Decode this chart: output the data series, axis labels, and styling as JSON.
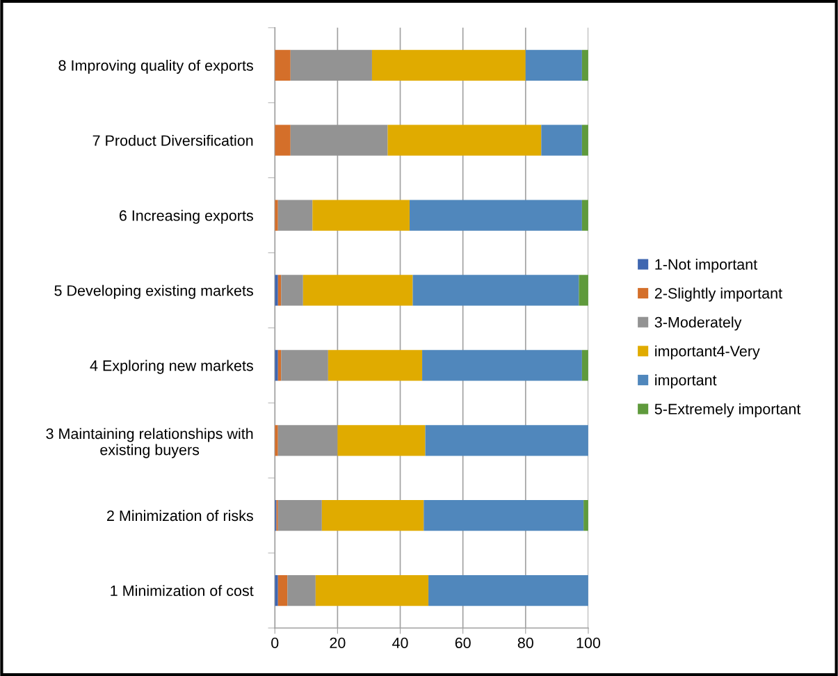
{
  "chart_data": {
    "type": "bar",
    "orientation": "horizontal",
    "stacked": true,
    "categories": [
      "8 Improving quality of exports",
      "7 Product Diversification",
      "6 Increasing exports",
      "5 Developing existing markets",
      "4 Exploring new markets",
      "3 Maintaining relationships with\nexisting buyers",
      "2 Minimization of risks",
      "1 Minimization of cost"
    ],
    "series": [
      {
        "name": "1-Not important",
        "color": "#3f66b0",
        "values": [
          0,
          0,
          0,
          1,
          1,
          0,
          0.5,
          1
        ]
      },
      {
        "name": "2-Slightly important",
        "color": "#d46f2a",
        "values": [
          5,
          5,
          1,
          1,
          1,
          1,
          0.5,
          3
        ]
      },
      {
        "name": "3-Moderately",
        "color": "#939393",
        "values": [
          26,
          31,
          11,
          7,
          15,
          19,
          14,
          9
        ]
      },
      {
        "name": "important4-Very",
        "color": "#e0ab00",
        "values": [
          49,
          49,
          31,
          35,
          30,
          28,
          32.5,
          36
        ]
      },
      {
        "name": "important",
        "color": "#5087bc",
        "values": [
          18,
          13,
          55,
          53,
          51,
          52,
          51,
          51
        ]
      },
      {
        "name": "5-Extremely important",
        "color": "#5f9a3c",
        "values": [
          2,
          2,
          2,
          3,
          2,
          0,
          1.5,
          0
        ]
      }
    ],
    "xlim": [
      0,
      100
    ],
    "xticks": [
      0,
      20,
      40,
      60,
      80,
      100
    ],
    "grid": "x",
    "legend": "right"
  }
}
